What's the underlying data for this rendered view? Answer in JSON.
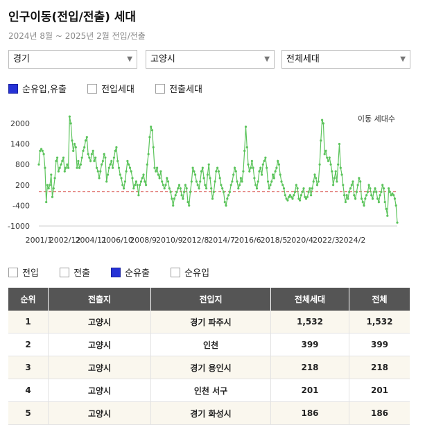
{
  "header": {
    "title": "인구이동(전입/전출) 세대",
    "subtitle": "2024년 8월 ~ 2025년 2월 전입/전출"
  },
  "filters": {
    "region": "경기",
    "city": "고양시",
    "household": "전체세대"
  },
  "legend_top": [
    {
      "label": "순유입,유출",
      "checked": true
    },
    {
      "label": "전입세대",
      "checked": false
    },
    {
      "label": "전출세대",
      "checked": false
    }
  ],
  "legend_bottom": [
    {
      "label": "전입",
      "checked": false
    },
    {
      "label": "전출",
      "checked": false
    },
    {
      "label": "순유출",
      "checked": true
    },
    {
      "label": "순유입",
      "checked": false
    }
  ],
  "colors": {
    "line": "#5cc45c",
    "zero_line": "#d9534f",
    "checked": "#2632d6",
    "table_header": "#555555"
  },
  "chart_data": {
    "type": "line",
    "unit_label": "이동 세대수",
    "y_ticks": [
      2000,
      1400,
      800,
      200,
      -400,
      -1000
    ],
    "ylim": [
      -1000,
      2000
    ],
    "x_ticks": [
      "2001/1",
      "2002/12",
      "2004/11",
      "2006/10",
      "2008/9",
      "2010/9",
      "2012/8",
      "2014/7",
      "2016/6",
      "2018/5",
      "2020/4",
      "2022/3",
      "2024/2"
    ],
    "x_start": "2001-01",
    "x_end": "2025-02",
    "grid": false,
    "series": [
      {
        "values": [
          800,
          1200,
          1250,
          1200,
          1100,
          700,
          -300,
          200,
          100,
          200,
          500,
          -150,
          100,
          400,
          900,
          1000,
          600,
          700,
          800,
          900,
          1000,
          600,
          700,
          800,
          700,
          2200,
          2000,
          1500,
          1200,
          1400,
          1300,
          700,
          900,
          700,
          800,
          1000,
          1200,
          1300,
          1500,
          1600,
          1100,
          1000,
          900,
          1100,
          1200,
          900,
          1000,
          700,
          600,
          400,
          600,
          800,
          900,
          1100,
          1000,
          300,
          500,
          700,
          800,
          900,
          700,
          1000,
          1200,
          1300,
          900,
          700,
          500,
          400,
          200,
          100,
          300,
          600,
          900,
          800,
          700,
          600,
          400,
          100,
          200,
          300,
          200,
          -100,
          200,
          300,
          400,
          500,
          300,
          200,
          800,
          1100,
          1600,
          1900,
          1800,
          1300,
          700,
          600,
          700,
          500,
          400,
          600,
          300,
          200,
          100,
          200,
          400,
          300,
          100,
          0,
          -200,
          -400,
          -200,
          -100,
          0,
          100,
          200,
          100,
          -100,
          -200,
          0,
          200,
          100,
          -300,
          -400,
          0,
          300,
          700,
          600,
          500,
          300,
          200,
          100,
          300,
          600,
          700,
          400,
          200,
          100,
          500,
          800,
          400,
          100,
          -200,
          0,
          300,
          600,
          700,
          600,
          400,
          200,
          100,
          0,
          -300,
          -400,
          -200,
          -100,
          0,
          200,
          300,
          500,
          700,
          600,
          300,
          100,
          200,
          400,
          300,
          600,
          1200,
          1900,
          1300,
          800,
          600,
          700,
          900,
          700,
          400,
          200,
          100,
          300,
          600,
          700,
          500,
          800,
          900,
          1000,
          700,
          300,
          100,
          200,
          300,
          500,
          400,
          600,
          700,
          900,
          800,
          500,
          300,
          200,
          100,
          -100,
          -200,
          -250,
          -150,
          -100,
          -150,
          -200,
          -100,
          0,
          200,
          100,
          -200,
          -250,
          -100,
          0,
          100,
          -150,
          -200,
          -150,
          0,
          100,
          -100,
          100,
          300,
          500,
          400,
          200,
          300,
          800,
          1500,
          2100,
          2000,
          1100,
          1200,
          1000,
          900,
          1000,
          800,
          600,
          200,
          400,
          600,
          300,
          800,
          1400,
          700,
          500,
          200,
          -100,
          -300,
          -100,
          -200,
          0,
          100,
          200,
          300,
          -100,
          -200,
          0,
          200,
          400,
          300,
          -200,
          -300,
          -400,
          -200,
          -100,
          0,
          200,
          100,
          -100,
          -200,
          0,
          100,
          0,
          -200,
          -300,
          -100,
          0,
          200,
          100,
          -300,
          -500,
          -700,
          100,
          0,
          -100,
          -50,
          -100,
          -200,
          -400,
          -900
        ]
      }
    ]
  },
  "table": {
    "headers": [
      "순위",
      "전출지",
      "전입지",
      "전체세대",
      "전체"
    ],
    "rows": [
      [
        "1",
        "고양시",
        "경기 파주시",
        "1,532",
        "1,532"
      ],
      [
        "2",
        "고양시",
        "인천",
        "399",
        "399"
      ],
      [
        "3",
        "고양시",
        "경기 용인시",
        "218",
        "218"
      ],
      [
        "4",
        "고양시",
        "인천 서구",
        "201",
        "201"
      ],
      [
        "5",
        "고양시",
        "경기 화성시",
        "186",
        "186"
      ]
    ]
  }
}
